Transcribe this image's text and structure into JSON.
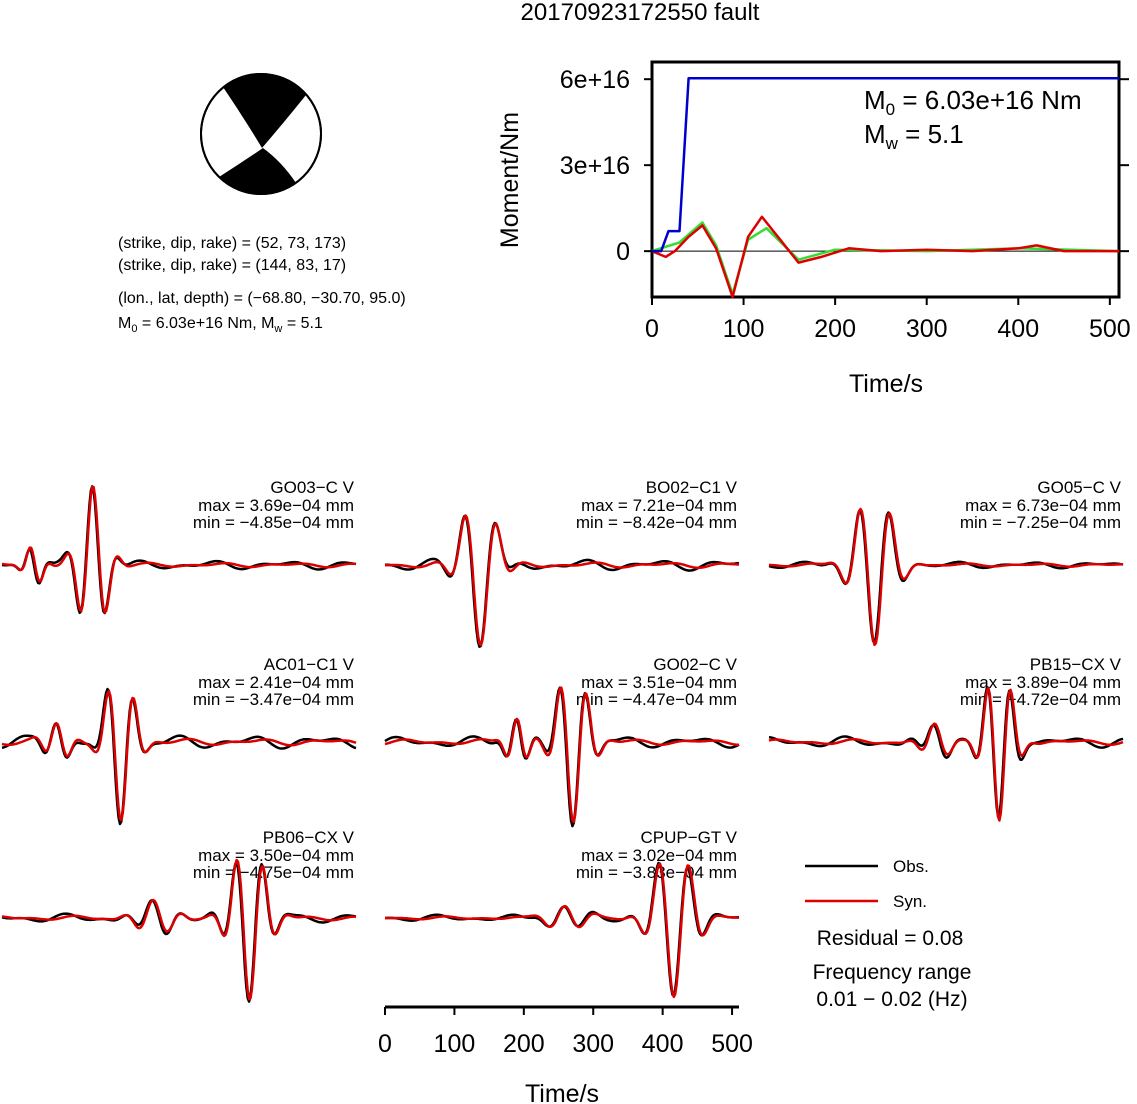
{
  "title": "20170923172550 fault",
  "mechanism": {
    "line1": "(strike, dip, rake) = (52, 73, 173)",
    "line2": "(strike, dip, rake) = (144, 83, 17)",
    "line3": "(lon., lat, depth) = (−68.80, −30.70, 95.0)",
    "m0_label": "M",
    "m0_sub": "0",
    "m0_value": " = 6.03e+16 Nm, M",
    "mw_sub": "w",
    "mw_value": " = 5.1"
  },
  "moment_panel": {
    "ylabel": "Moment/Nm",
    "xlabel": "Time/s",
    "m0_text": " = 6.03e+16 Nm",
    "mw_text": " = 5.1",
    "m_letter": "M",
    "m0_sub": "0",
    "mw_sub": "w"
  },
  "legend": {
    "obs": "Obs.",
    "syn": "Syn.",
    "residual": "Residual = 0.08",
    "freq_label": "Frequency range",
    "freq_value": "0.01 − 0.02 (Hz)"
  },
  "bottom_axis": {
    "xlabel": "Time/s"
  },
  "colors": {
    "obs": "#000000",
    "syn": "#dd0000",
    "moment": "#0000cc",
    "green": "#33dd33"
  },
  "chart_data": [
    {
      "type": "line",
      "name": "moment-function",
      "xlim": [
        0,
        510
      ],
      "ylim": [
        -1.6e+16,
        6.6e+16
      ],
      "xticks": [
        0,
        100,
        200,
        300,
        400,
        500
      ],
      "yticks": [
        0,
        3e+16,
        6e+16
      ],
      "ytick_labels": [
        "0",
        "3e+16",
        "6e+16"
      ],
      "series": [
        {
          "color": "#0000cc",
          "x": [
            0,
            10,
            18,
            30,
            40,
            500,
            510
          ],
          "y": [
            0,
            0,
            7000000000000000.0,
            7000000000000000.0,
            6.03e+16,
            6.03e+16,
            6.03e+16
          ]
        },
        {
          "color": "#dd0000",
          "x": [
            0,
            15,
            25,
            40,
            55,
            70,
            88,
            105,
            120,
            140,
            160,
            185,
            215,
            250,
            300,
            350,
            400,
            420,
            450,
            500,
            510
          ],
          "y": [
            0,
            -2000000000000000.0,
            0,
            5000000000000000.0,
            9000000000000000.0,
            1000000000000000.0,
            -1.6e+16,
            5000000000000000.0,
            1.2e+16,
            4000000000000000.0,
            -4000000000000000.0,
            -2000000000000000.0,
            1000000000000000.0,
            0,
            500000000000000.0,
            0,
            1000000000000000.0,
            2000000000000000.0,
            0,
            0,
            0
          ]
        },
        {
          "color": "#33dd33",
          "x": [
            0,
            30,
            55,
            70,
            88,
            105,
            125,
            160,
            200,
            300,
            400,
            510
          ],
          "y": [
            0,
            3000000000000000.0,
            1e+16,
            2000000000000000.0,
            -1.5e+16,
            4000000000000000.0,
            8000000000000000.0,
            -3000000000000000.0,
            500000000000000.0,
            0,
            1000000000000000.0,
            0
          ]
        }
      ]
    },
    {
      "type": "line",
      "name": "waveform-comparison",
      "xlim": [
        0,
        510
      ],
      "xticks": [
        0,
        100,
        200,
        300,
        400,
        500
      ],
      "stations": [
        {
          "name": "GO03−C V",
          "max": "max = 3.69e−04 mm",
          "min": "min = −4.85e−04 mm"
        },
        {
          "name": "BO02−C1 V",
          "max": "max = 7.21e−04 mm",
          "min": "min = −8.42e−04 mm"
        },
        {
          "name": "GO05−C V",
          "max": "max = 6.73e−04 mm",
          "min": "min = −7.25e−04 mm"
        },
        {
          "name": "AC01−C1 V",
          "max": "max = 2.41e−04 mm",
          "min": "min = −3.47e−04 mm"
        },
        {
          "name": "GO02−C V",
          "max": "max = 3.51e−04 mm",
          "min": "min = −4.47e−04 mm"
        },
        {
          "name": "PB15−CX V",
          "max": "max = 3.89e−04 mm",
          "min": "min = −4.72e−04 mm"
        },
        {
          "name": "PB06−CX V",
          "max": "max = 3.50e−04 mm",
          "min": "min = −4.75e−04 mm"
        },
        {
          "name": "CPUP−GT V",
          "max": "max = 3.02e−04 mm",
          "min": "min = −3.83e−04 mm"
        }
      ]
    }
  ]
}
